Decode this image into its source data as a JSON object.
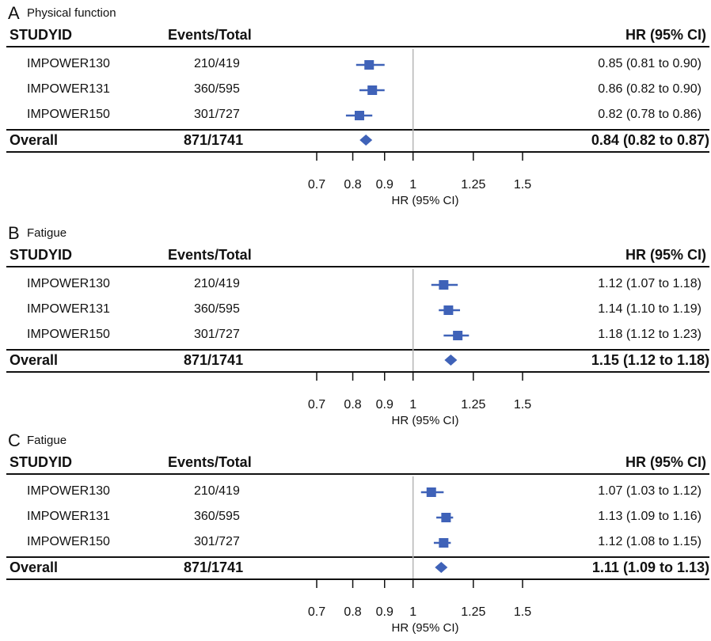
{
  "headers": {
    "study": "STUDYID",
    "events": "Events/Total",
    "hr": "HR (95% CI)"
  },
  "axis_ticks": [
    "0.7",
    "0.8",
    "0.9",
    "1",
    "1.25",
    "1.5"
  ],
  "axis_label": "HR (95% CI)",
  "colors": {
    "marker": "#3f62b8",
    "refline": "#b5b5b5",
    "text": "#111111"
  },
  "chart_data": [
    {
      "type": "forest",
      "panel": "A",
      "title": "Physical function",
      "x_scale": "log",
      "xlim": [
        0.65,
        1.6
      ],
      "reference": 1,
      "rows": [
        {
          "study": "IMPOWER130",
          "events": "210/419",
          "hr": 0.85,
          "lo": 0.81,
          "hi": 0.9,
          "label": "0.85 (0.81 to 0.90)"
        },
        {
          "study": "IMPOWER131",
          "events": "360/595",
          "hr": 0.86,
          "lo": 0.82,
          "hi": 0.9,
          "label": "0.86 (0.82 to 0.90)"
        },
        {
          "study": "IMPOWER150",
          "events": "301/727",
          "hr": 0.82,
          "lo": 0.78,
          "hi": 0.86,
          "label": "0.82 (0.78 to 0.86)"
        }
      ],
      "overall": {
        "study": "Overall",
        "events": "871/1741",
        "hr": 0.84,
        "lo": 0.82,
        "hi": 0.87,
        "label": "0.84 (0.82 to 0.87)"
      }
    },
    {
      "type": "forest",
      "panel": "B",
      "title": "Fatigue",
      "x_scale": "log",
      "xlim": [
        0.65,
        1.6
      ],
      "reference": 1,
      "rows": [
        {
          "study": "IMPOWER130",
          "events": "210/419",
          "hr": 1.12,
          "lo": 1.07,
          "hi": 1.18,
          "label": "1.12 (1.07 to 1.18)"
        },
        {
          "study": "IMPOWER131",
          "events": "360/595",
          "hr": 1.14,
          "lo": 1.1,
          "hi": 1.19,
          "label": "1.14 (1.10 to 1.19)"
        },
        {
          "study": "IMPOWER150",
          "events": "301/727",
          "hr": 1.18,
          "lo": 1.12,
          "hi": 1.23,
          "label": "1.18 (1.12 to 1.23)"
        }
      ],
      "overall": {
        "study": "Overall",
        "events": "871/1741",
        "hr": 1.15,
        "lo": 1.12,
        "hi": 1.18,
        "label": "1.15 (1.12 to 1.18)"
      }
    },
    {
      "type": "forest",
      "panel": "C",
      "title": "Fatigue",
      "x_scale": "log",
      "xlim": [
        0.65,
        1.6
      ],
      "reference": 1,
      "rows": [
        {
          "study": "IMPOWER130",
          "events": "210/419",
          "hr": 1.07,
          "lo": 1.03,
          "hi": 1.12,
          "label": "1.07 (1.03 to 1.12)"
        },
        {
          "study": "IMPOWER131",
          "events": "360/595",
          "hr": 1.13,
          "lo": 1.09,
          "hi": 1.16,
          "label": "1.13 (1.09 to 1.16)"
        },
        {
          "study": "IMPOWER150",
          "events": "301/727",
          "hr": 1.12,
          "lo": 1.08,
          "hi": 1.15,
          "label": "1.12 (1.08 to 1.15)"
        }
      ],
      "overall": {
        "study": "Overall",
        "events": "871/1741",
        "hr": 1.11,
        "lo": 1.09,
        "hi": 1.13,
        "label": "1.11 (1.09 to 1.13)"
      }
    }
  ]
}
